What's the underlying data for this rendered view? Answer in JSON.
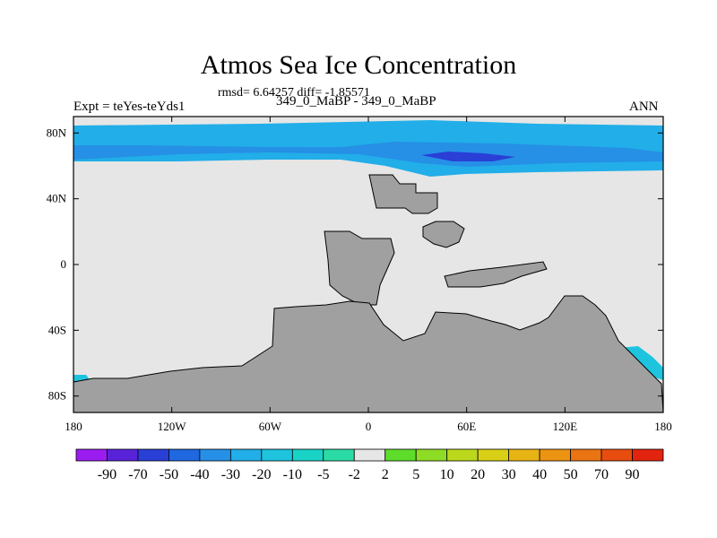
{
  "chart_data": {
    "type": "contour-map",
    "title": "Atmos Sea Ice Concentration",
    "stats_text": "rmsd= 6.64257 diff= -1.85571",
    "left_label": "Expt = teYes-teYds1",
    "center_label": "349_0_MaBP - 349_0_MaBP",
    "right_label": "ANN",
    "xlim": [
      -180,
      180
    ],
    "ylim": [
      -90,
      90
    ],
    "x_ticks": [
      {
        "value": -180,
        "label": "180"
      },
      {
        "value": -120,
        "label": "120W"
      },
      {
        "value": -60,
        "label": "60W"
      },
      {
        "value": 0,
        "label": "0"
      },
      {
        "value": 60,
        "label": "60E"
      },
      {
        "value": 120,
        "label": "120E"
      },
      {
        "value": 180,
        "label": "180"
      }
    ],
    "y_ticks": [
      {
        "value": 80,
        "label": "80N"
      },
      {
        "value": 40,
        "label": "40N"
      },
      {
        "value": 0,
        "label": "0"
      },
      {
        "value": -40,
        "label": "40S"
      },
      {
        "value": -80,
        "label": "80S"
      }
    ],
    "colorbar": {
      "labels": [
        "-90",
        "-70",
        "-50",
        "-40",
        "-30",
        "-20",
        "-10",
        "-5",
        "-2",
        "2",
        "5",
        "10",
        "20",
        "30",
        "40",
        "50",
        "70",
        "90"
      ],
      "colors": [
        "#9b1cf0",
        "#5a22d8",
        "#2a3fd6",
        "#1f68e0",
        "#2590e6",
        "#22aee8",
        "#1ec4de",
        "#19d3c7",
        "#2bdba6",
        "#e6e6e6",
        "#5edc2a",
        "#8fdc26",
        "#bcd81c",
        "#d9cf16",
        "#e8b414",
        "#ec9412",
        "#ea7312",
        "#e84d10",
        "#e2240f"
      ]
    },
    "ocean_color": "#e6e6e6",
    "land_color": "#a0a0a0",
    "regions": [
      {
        "name": "arctic-band",
        "value": -20,
        "color": "#22aee8"
      },
      {
        "name": "arctic-inner",
        "value": -30,
        "color": "#2590e6"
      },
      {
        "name": "arctic-core",
        "value": -50,
        "color": "#2a3fd6"
      },
      {
        "name": "southern-ocean",
        "value": -10,
        "color": "#1ec4de"
      }
    ]
  }
}
